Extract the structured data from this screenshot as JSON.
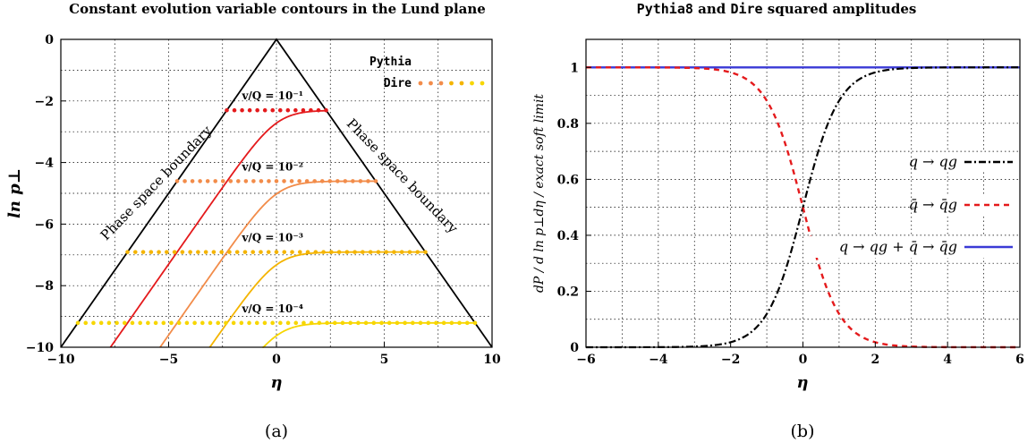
{
  "panels": {
    "a": {
      "caption": "(a)",
      "title": "Constant evolution variable contours in the Lund plane",
      "xlabel": "η",
      "ylabel": "ln p⊥",
      "legend": [
        {
          "label": "Pythia",
          "style": "gradient-line"
        },
        {
          "label": "Dire",
          "style": "dots"
        }
      ],
      "boundary_label_left": "Phase space boundary",
      "boundary_label_right": "Phase space boundary",
      "annotation_prefix": "v/Q = ",
      "colors": {
        "red": "#e41a1c",
        "orange": "#f28c4a",
        "gold": "#f4b400",
        "yellow": "#f7d600",
        "black": "#000000"
      }
    },
    "b": {
      "caption": "(b)",
      "title_parts": [
        "Pythia8",
        " and ",
        "Dire",
        " squared amplitudes"
      ],
      "xlabel": "η",
      "ylabel": "dP / d ln p⊥dη  / exact soft limit",
      "legend": [
        {
          "label": "q → qg",
          "color": "#000000",
          "style": "dash-dot"
        },
        {
          "label": "q̄ → q̄g",
          "color": "#e41a1c",
          "style": "dashed"
        },
        {
          "label": "q → qg + q̄ → q̄g",
          "color": "#3a3ad6",
          "style": "solid"
        }
      ]
    }
  },
  "chart_data": [
    {
      "type": "line",
      "title": "Constant evolution variable contours in the Lund plane",
      "xlabel": "η",
      "ylabel": "ln p⊥",
      "xlim": [
        -10,
        10
      ],
      "ylim": [
        -10,
        0
      ],
      "xticks": [
        -10,
        -5,
        0,
        5,
        10
      ],
      "yticks": [
        0,
        -2,
        -4,
        -6,
        -8,
        -10
      ],
      "grid": true,
      "legend_position": "top-right",
      "boundary": {
        "x": [
          -10,
          0,
          10
        ],
        "y": [
          -10,
          0,
          -10
        ]
      },
      "contours": [
        {
          "label": "10⁻¹",
          "lnv": -2.303,
          "color": "#e41a1c"
        },
        {
          "label": "10⁻²",
          "lnv": -4.605,
          "color": "#f28c4a"
        },
        {
          "label": "10⁻³",
          "lnv": -6.908,
          "color": "#f4b400"
        },
        {
          "label": "10⁻⁴",
          "lnv": -9.21,
          "color": "#f7d600"
        }
      ],
      "series": [
        {
          "name": "Pythia",
          "description": "ln p⊥ = ln v + η for η < 0, smooth turnover to ln v at η > 0, truncated at η = -ln v"
        },
        {
          "name": "Dire",
          "description": "horizontal dotted line at ln p⊥ = ln v for |η| < -ln v"
        }
      ]
    },
    {
      "type": "line",
      "title": "Pythia8 and Dire squared amplitudes",
      "xlabel": "η",
      "ylabel": "dP / d ln p⊥dη / exact soft limit",
      "xlim": [
        -6,
        6
      ],
      "ylim": [
        0,
        1.1
      ],
      "xticks": [
        -6,
        -4,
        -2,
        0,
        2,
        4,
        6
      ],
      "yticks": [
        0,
        0.2,
        0.4,
        0.6,
        0.8,
        1
      ],
      "grid": true,
      "legend_position": "right",
      "x": [
        -6,
        -5,
        -4,
        -3,
        -2.5,
        -2,
        -1.5,
        -1,
        -0.5,
        0,
        0.5,
        1,
        1.5,
        2,
        2.5,
        3,
        4,
        5,
        6
      ],
      "series": [
        {
          "name": "q → qg",
          "values": [
            0.0,
            0.0,
            0.0,
            0.002,
            0.007,
            0.018,
            0.047,
            0.119,
            0.269,
            0.5,
            0.731,
            0.881,
            0.953,
            0.982,
            0.993,
            0.998,
            1.0,
            1.0,
            1.0
          ]
        },
        {
          "name": "q̄ → q̄g",
          "values": [
            1.0,
            1.0,
            1.0,
            0.998,
            0.993,
            0.982,
            0.953,
            0.881,
            0.731,
            0.5,
            0.269,
            0.119,
            0.047,
            0.018,
            0.007,
            0.002,
            0.0,
            0.0,
            0.0
          ]
        },
        {
          "name": "q → qg + q̄ → q̄g",
          "values": [
            1,
            1,
            1,
            1,
            1,
            1,
            1,
            1,
            1,
            1,
            1,
            1,
            1,
            1,
            1,
            1,
            1,
            1,
            1
          ]
        }
      ]
    }
  ]
}
